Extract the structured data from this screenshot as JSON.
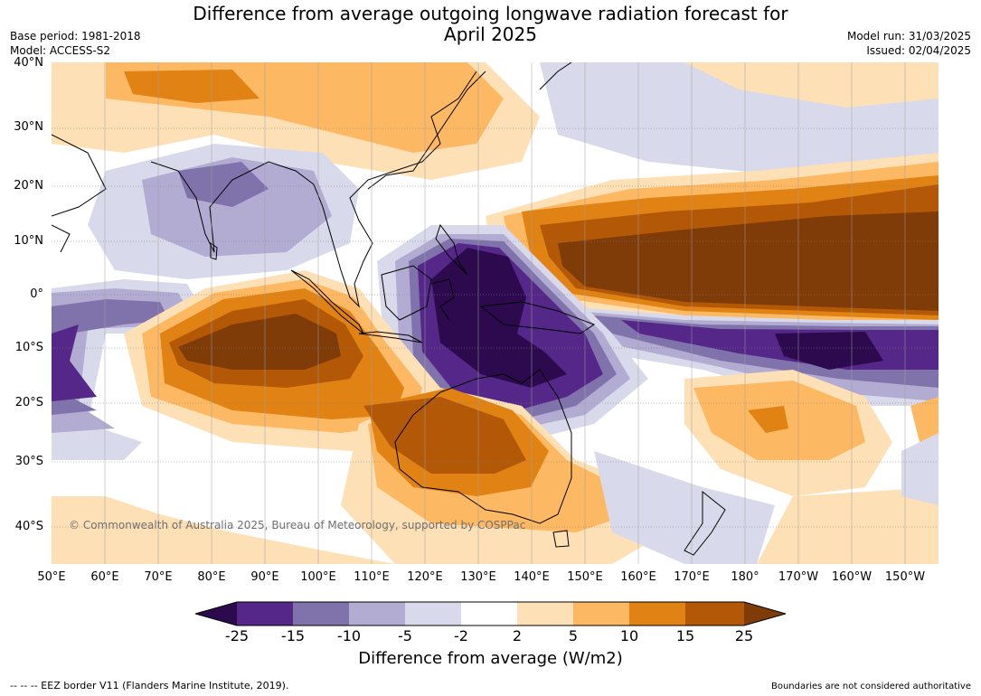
{
  "header": {
    "title_line1": "Difference from average outgoing longwave radiation forecast for",
    "title_line2": "April 2025",
    "base_period": "Base period: 1981-2018",
    "model": "Model: ACCESS-S2",
    "model_run": "Model run: 31/03/2025",
    "issued": "Issued: 02/04/2025"
  },
  "map": {
    "copyright": "© Commonwealth of Australia 2025, Bureau of Meteorology, supported by COSPPac",
    "lat_labels": [
      "40°N",
      "30°N",
      "20°N",
      "10°N",
      "0°",
      "10°S",
      "20°S",
      "30°S",
      "40°S"
    ],
    "lon_labels": [
      "50°E",
      "60°E",
      "70°E",
      "80°E",
      "90°E",
      "100°E",
      "110°E",
      "120°E",
      "130°E",
      "140°E",
      "150°E",
      "160°E",
      "170°E",
      "180°",
      "170°W",
      "160°W",
      "150°W"
    ],
    "anomaly_colors": {
      "lt_-25": "#2d0a4e",
      "-25_-15": "#542788",
      "-15_-10": "#8073ac",
      "-10_-5": "#b2abd2",
      "-5_-2": "#d8daeb",
      "-2_2": "#ffffff",
      "2_5": "#fee0b6",
      "5_10": "#fdb863",
      "10_15": "#e08214",
      "15_25": "#b35806",
      "gt_25": "#7f3b08"
    }
  },
  "colorbar": {
    "tick_labels": [
      "-25",
      "-15",
      "-10",
      "-5",
      "-2",
      "2",
      "5",
      "10",
      "15",
      "25"
    ],
    "title": "Difference from average (W/m2)"
  },
  "footer": {
    "eez_note": "--  --  -- EEZ border V11 (Flanders Marine Institute, 2019).",
    "boundaries_note": "Boundaries are not considered authoritative"
  }
}
